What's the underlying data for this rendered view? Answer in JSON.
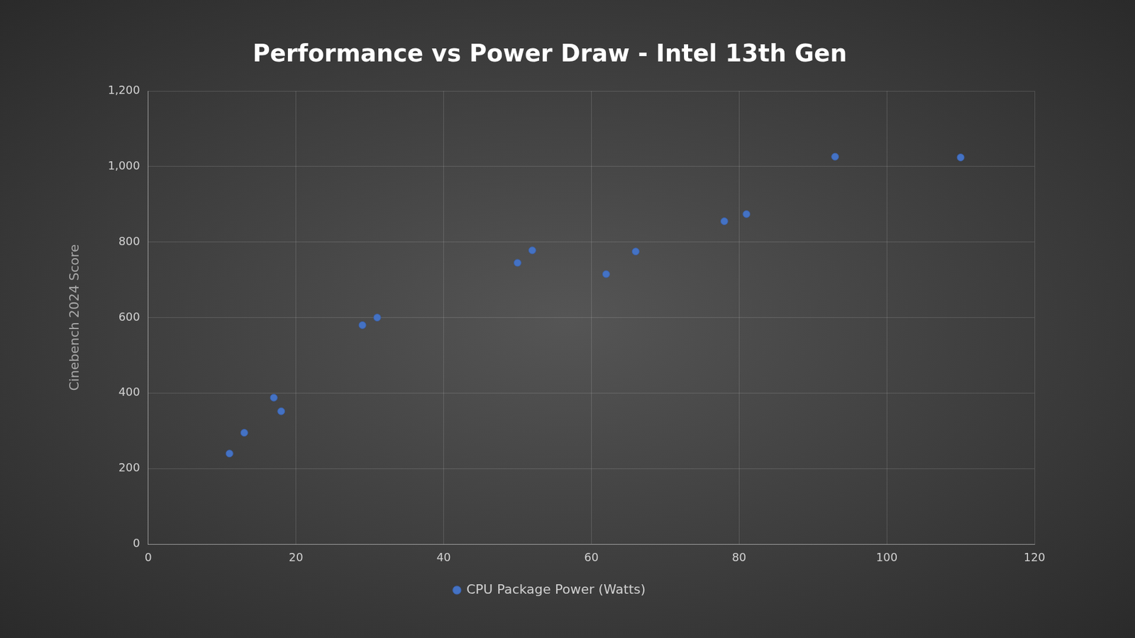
{
  "chart_data": {
    "type": "scatter",
    "title": "Performance vs Power Draw - Intel 13th Gen",
    "y_label": "Cinebench 2024 Score",
    "series": [
      {
        "name": "CPU Package Power (Watts)",
        "color": "#4472c4",
        "marker": "circle",
        "x": [
          11,
          13,
          17,
          18,
          29,
          31,
          50,
          52,
          62,
          66,
          78,
          81,
          93,
          110
        ],
        "values": [
          240,
          295,
          388,
          352,
          580,
          600,
          745,
          778,
          715,
          775,
          855,
          874,
          1026,
          1024
        ]
      }
    ],
    "xlim": [
      0,
      120
    ],
    "xticks": [
      0,
      20,
      40,
      60,
      80,
      100,
      120
    ],
    "ylim": [
      0,
      1200
    ],
    "yticks": [
      0,
      200,
      400,
      600,
      800,
      {
        "value": 1000,
        "label": "1,000"
      },
      {
        "value": 1200,
        "label": "1,200"
      }
    ],
    "grid": true,
    "legend": "bottom"
  }
}
